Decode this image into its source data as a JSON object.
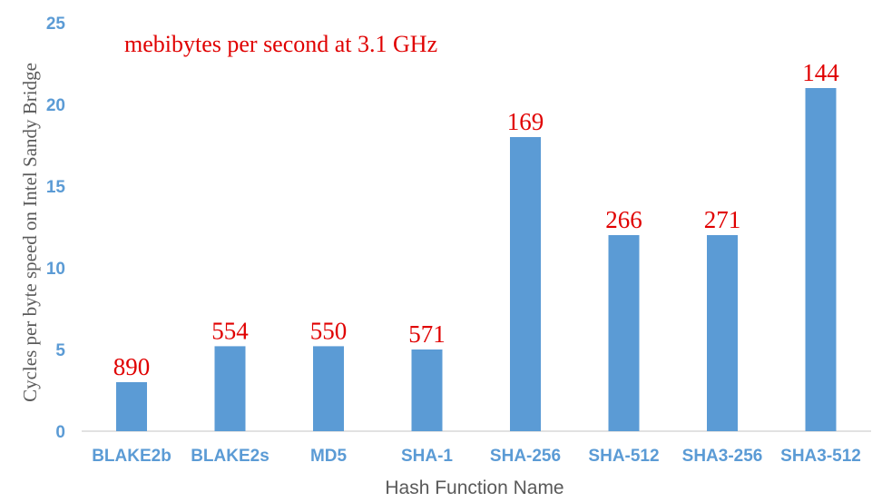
{
  "chart_data": {
    "type": "bar",
    "categories": [
      "BLAKE2b",
      "BLAKE2s",
      "MD5",
      "SHA-1",
      "SHA-256",
      "SHA-512",
      "SHA3-256",
      "SHA3-512"
    ],
    "values": [
      3,
      5.2,
      5.2,
      5,
      18,
      12,
      12,
      21
    ],
    "data_labels": [
      "890",
      "554",
      "550",
      "571",
      "169",
      "266",
      "271",
      "144"
    ],
    "xlabel": "Hash Function Name",
    "ylabel": "Cycles per byte speed on Intel Sandy Bridge",
    "annotation": "mebibytes per second at 3.1 GHz",
    "ylim": [
      0,
      25
    ],
    "yticks": [
      "0",
      "5",
      "10",
      "15",
      "20",
      "25"
    ],
    "grid": false,
    "legend": "none",
    "colors": {
      "bar": "#5b9bd5",
      "tick_text": "#5b9bd5",
      "data_label": "#e00000",
      "annotation": "#e00000",
      "axis_title": "#595959",
      "axis_line": "#d9d9d9"
    }
  }
}
